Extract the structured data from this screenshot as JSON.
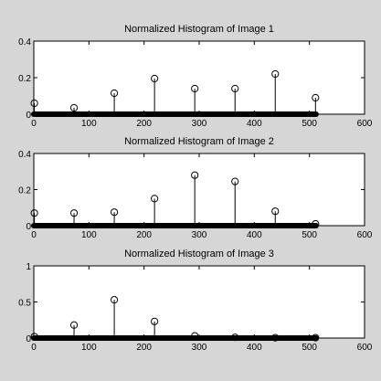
{
  "chart_data": [
    {
      "type": "stem",
      "title": "Normalized Histogram of Image 1",
      "xlim": [
        0,
        600
      ],
      "ylim": [
        0,
        0.4
      ],
      "xticks": [
        0,
        100,
        200,
        300,
        400,
        500,
        600
      ],
      "yticks": [
        0,
        0.2,
        0.4
      ],
      "xtick_labels": [
        "0",
        "100",
        "200",
        "300",
        "400",
        "500",
        "600"
      ],
      "ytick_labels": [
        "0",
        "0.2",
        "0.4"
      ],
      "dense_range": [
        0,
        512
      ],
      "x": [
        1,
        73,
        146,
        219,
        292,
        365,
        438,
        511
      ],
      "values": [
        0.06,
        0.035,
        0.115,
        0.195,
        0.14,
        0.14,
        0.22,
        0.09
      ]
    },
    {
      "type": "stem",
      "title": "Normalized Histogram of Image 2",
      "xlim": [
        0,
        600
      ],
      "ylim": [
        0,
        0.4
      ],
      "xticks": [
        0,
        100,
        200,
        300,
        400,
        500,
        600
      ],
      "yticks": [
        0,
        0.2,
        0.4
      ],
      "xtick_labels": [
        "0",
        "100",
        "200",
        "300",
        "400",
        "500",
        "600"
      ],
      "ytick_labels": [
        "0",
        "0.2",
        "0.4"
      ],
      "dense_range": [
        0,
        512
      ],
      "x": [
        1,
        73,
        146,
        219,
        292,
        365,
        438,
        511
      ],
      "values": [
        0.07,
        0.07,
        0.075,
        0.15,
        0.28,
        0.245,
        0.08,
        0.01
      ]
    },
    {
      "type": "stem",
      "title": "Normalized Histogram of Image 3",
      "xlim": [
        0,
        600
      ],
      "ylim": [
        0,
        1
      ],
      "xticks": [
        0,
        100,
        200,
        300,
        400,
        500,
        600
      ],
      "yticks": [
        0,
        0.5,
        1
      ],
      "xtick_labels": [
        "0",
        "100",
        "200",
        "300",
        "400",
        "500",
        "600"
      ],
      "ytick_labels": [
        "0",
        "0.5",
        "1"
      ],
      "dense_range": [
        0,
        512
      ],
      "x": [
        1,
        73,
        146,
        219,
        292,
        365,
        438,
        511
      ],
      "values": [
        0.02,
        0.18,
        0.53,
        0.23,
        0.03,
        0.01,
        0.005,
        0.005
      ]
    }
  ]
}
